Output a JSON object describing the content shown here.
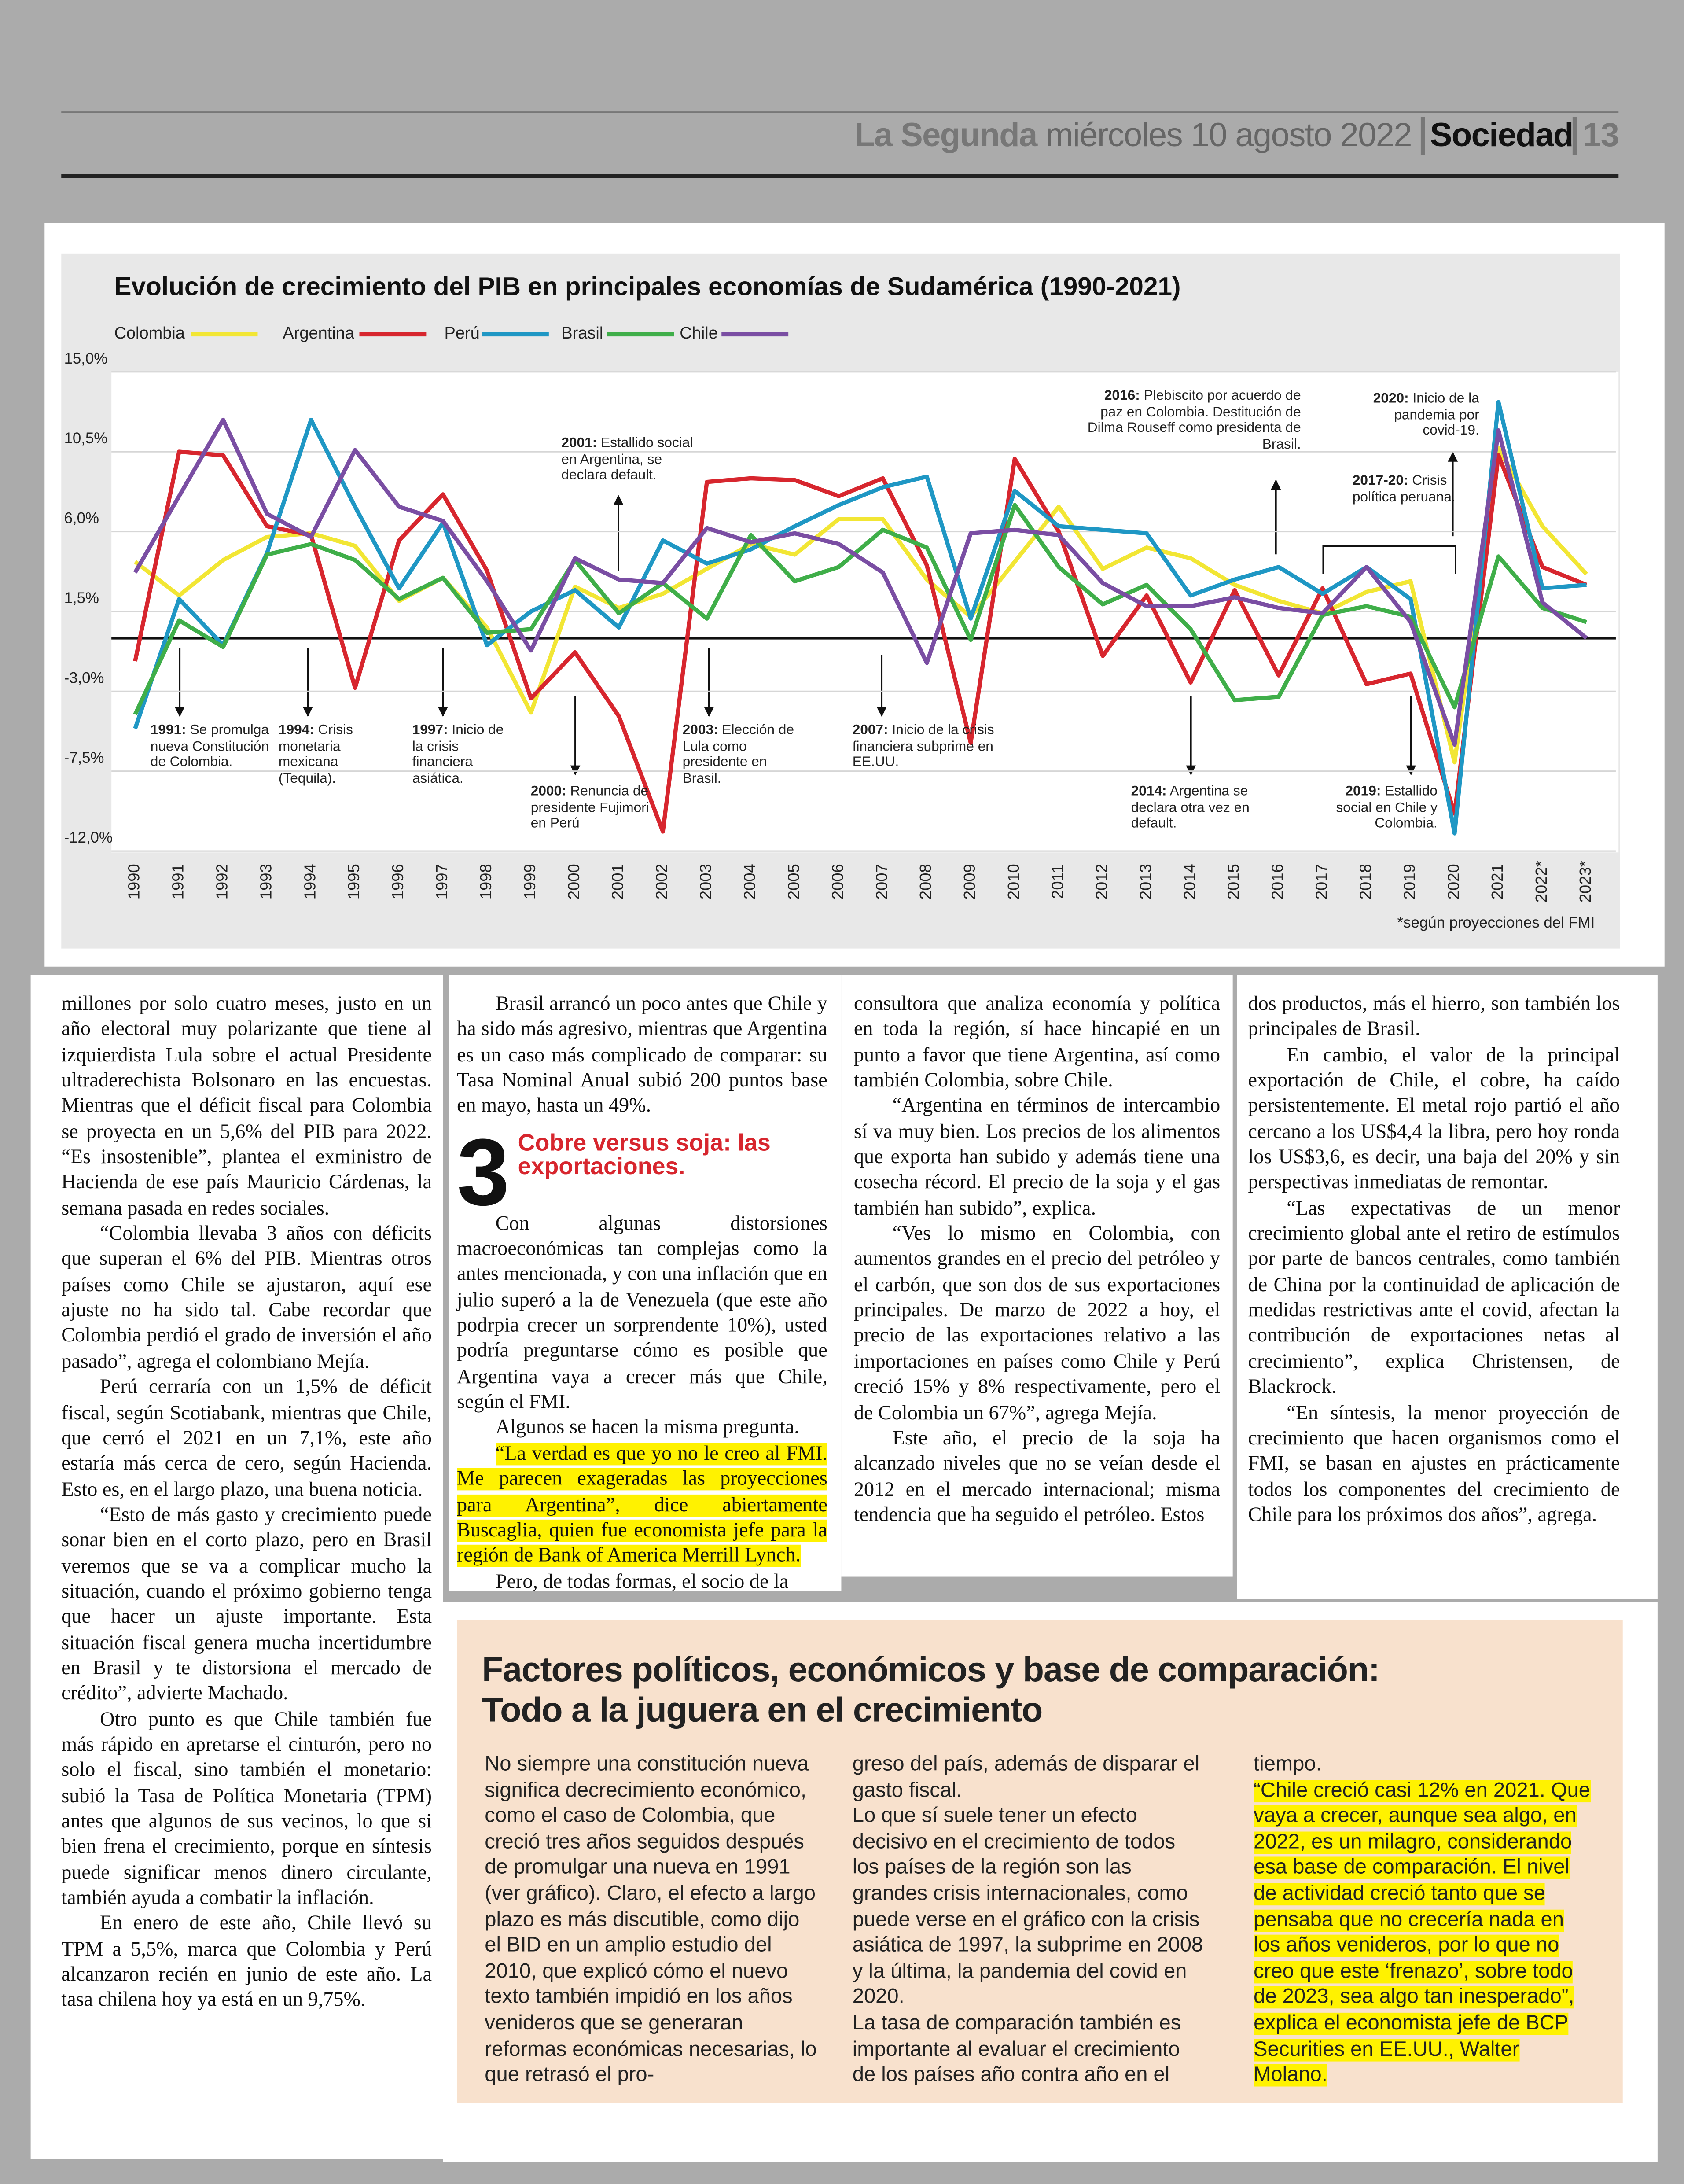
{
  "header": {
    "brand": "La Segunda",
    "date": "miércoles 10 agosto 2022",
    "section": "Sociedad",
    "page": 13
  },
  "chart_data": {
    "type": "line",
    "title": "Evolución de crecimiento del PIB en principales economías de Sudamérica (1990-2021)",
    "categories": [
      "1990",
      "1991",
      "1992",
      "1993",
      "1994",
      "1995",
      "1996",
      "1997",
      "1998",
      "1999",
      "2000",
      "2001",
      "2002",
      "2003",
      "2004",
      "2005",
      "2006",
      "2007",
      "2008",
      "2009",
      "2010",
      "2011",
      "2012",
      "2013",
      "2014",
      "2015",
      "2016",
      "2017",
      "2018",
      "2019",
      "2020",
      "2021",
      "2022*",
      "2023*"
    ],
    "series": [
      {
        "name": "Colombia",
        "color": "#f2e634",
        "values": [
          4.3,
          2.4,
          4.4,
          5.7,
          5.9,
          5.2,
          2.1,
          3.4,
          0.6,
          -4.2,
          2.9,
          1.7,
          2.5,
          3.9,
          5.3,
          4.7,
          6.7,
          6.7,
          3.3,
          1.2,
          4.3,
          7.4,
          3.9,
          5.1,
          4.5,
          3.0,
          2.1,
          1.4,
          2.6,
          3.2,
          -7.0,
          10.7,
          6.3,
          3.6
        ]
      },
      {
        "name": "Argentina",
        "color": "#d7262e",
        "values": [
          -1.3,
          10.5,
          10.3,
          6.3,
          5.8,
          -2.8,
          5.5,
          8.1,
          3.8,
          -3.4,
          -0.8,
          -4.4,
          -10.9,
          8.8,
          9.0,
          8.9,
          8.0,
          9.0,
          4.1,
          -5.9,
          10.1,
          6.0,
          -1.0,
          2.4,
          -2.5,
          2.7,
          -2.1,
          2.8,
          -2.6,
          -2.0,
          -9.9,
          10.3,
          4.0,
          3.0
        ]
      },
      {
        "name": "Perú",
        "color": "#1f97c4",
        "values": [
          -5.1,
          2.2,
          -0.4,
          4.8,
          12.3,
          7.4,
          2.8,
          6.5,
          -0.4,
          1.5,
          2.7,
          0.6,
          5.5,
          4.2,
          5.0,
          6.3,
          7.5,
          8.5,
          9.1,
          1.1,
          8.3,
          6.3,
          6.1,
          5.9,
          2.4,
          3.3,
          4.0,
          2.5,
          4.0,
          2.2,
          -11.0,
          13.3,
          2.8,
          3.0
        ]
      },
      {
        "name": "Brasil",
        "color": "#3fae49",
        "values": [
          -4.3,
          1.0,
          -0.5,
          4.7,
          5.3,
          4.4,
          2.2,
          3.4,
          0.3,
          0.5,
          4.4,
          1.4,
          3.1,
          1.1,
          5.8,
          3.2,
          4.0,
          6.1,
          5.1,
          -0.1,
          7.5,
          4.0,
          1.9,
          3.0,
          0.5,
          -3.5,
          -3.3,
          1.3,
          1.8,
          1.2,
          -3.9,
          4.6,
          1.7,
          0.9
        ]
      },
      {
        "name": "Chile",
        "color": "#7a4ea3",
        "values": [
          3.7,
          8.0,
          12.3,
          7.0,
          5.7,
          10.6,
          7.4,
          6.6,
          3.2,
          -0.7,
          4.5,
          3.3,
          3.1,
          6.2,
          5.4,
          5.9,
          5.3,
          3.7,
          -1.4,
          5.9,
          6.1,
          5.8,
          3.1,
          1.8,
          1.8,
          2.3,
          1.7,
          1.4,
          4.0,
          0.9,
          -6.0,
          11.7,
          2.0,
          0.0
        ]
      }
    ],
    "ylim": [
      -12,
      15
    ],
    "yticks": [
      {
        "value": 15,
        "label": "15,0%"
      },
      {
        "value": 10.5,
        "label": "10,5%"
      },
      {
        "value": 6,
        "label": "6,0%"
      },
      {
        "value": 1.5,
        "label": "1,5%"
      },
      {
        "value": -3,
        "label": "-3,0%"
      },
      {
        "value": -7.5,
        "label": "-7,5%"
      },
      {
        "value": -12,
        "label": "-12,0%"
      }
    ],
    "grid": true,
    "annotations": [
      {
        "label": "1991:",
        "text": "Se promulga nueva Constitución de Colombia."
      },
      {
        "label": "1994:",
        "text": "Crisis monetaria mexicana (Tequila)."
      },
      {
        "label": "1997:",
        "text": "Inicio de la crisis financiera asiática."
      },
      {
        "label": "2000:",
        "text": "Renuncia de presidente Fujimori en Perú"
      },
      {
        "label": "2001:",
        "text": "Estallido social en Argentina, se declara default."
      },
      {
        "label": "2003:",
        "text": "Elección de Lula como presidente en Brasil."
      },
      {
        "label": "2007:",
        "text": "Inicio de la crisis financiera subprime en EE.UU."
      },
      {
        "label": "2014:",
        "text": "Argentina se declara otra vez en default."
      },
      {
        "label": "2016:",
        "text": "Plebiscito por acuerdo de paz en Colombia. Destitución de Dilma Rouseff como presidenta de Brasil."
      },
      {
        "label": "2017-20:",
        "text": "Crisis política peruana."
      },
      {
        "label": "2020:",
        "text": "Inicio de la pandemia por covid-19."
      },
      {
        "label": "2019:",
        "text": "Estallido social en Chile y Colombia."
      }
    ],
    "note": "*según proyecciones del FMI"
  },
  "article": {
    "section_number": "3",
    "section_heading": "Cobre versus soja: las exportaciones.",
    "columns": [
      [
        "millones por solo cuatro meses, justo en un año electoral muy polarizante que tiene al izquierdista Lula sobre el actual Presidente ultraderechista Bolsonaro en las encuestas. Mientras que el déficit fiscal para Colombia se proyecta en un 5,6% del PIB para 2022. “Es insostenible”, plantea el exministro de Hacienda de ese país Mauricio Cárdenas, la semana pasada en redes sociales.",
        "“Colombia llevaba 3 años con déficits que superan el 6% del PIB. Mientras otros países como Chile se ajustaron, aquí ese ajuste no ha sido tal. Cabe recordar que Colombia perdió el grado de inversión el año pasado”, agrega el colombiano Mejía.",
        "Perú cerraría con un 1,5% de déficit fiscal, según Scotiabank, mientras que Chile, que cerró el 2021 en un 7,1%, este año estaría más cerca de cero, según Hacienda. Esto es, en el largo plazo, una buena noticia.",
        "“Esto de más gasto y crecimiento puede sonar bien en el corto plazo, pero en Brasil veremos que se va a complicar mucho la situación, cuando el próximo gobierno tenga que hacer un ajuste importante. Esta situación fiscal genera mucha incertidumbre en Brasil y te distorsiona el mercado de crédito”, advierte Machado.",
        "Otro punto es que Chile también fue más rápido en apretarse el cinturón, pero no solo el fiscal, sino también el monetario: subió la Tasa de Política Monetaria (TPM) antes que algunos de sus vecinos, lo que si bien frena el crecimiento, porque en síntesis puede significar menos dinero circulante, también ayuda a combatir la inflación.",
        "En enero de este año, Chile llevó su TPM a 5,5%, marca que Colombia y Perú alcanzaron recién en junio de este año. La tasa chilena hoy ya está en un 9,75%."
      ],
      [
        "Brasil arrancó un poco antes que Chile y ha sido más agresivo, mientras que Argentina es un caso más complicado de comparar: su Tasa Nominal Anual subió 200 puntos base en mayo, hasta un 49%.",
        "Con algunas distorsiones macroeconómicas tan complejas como la antes mencionada, y con una inflación que en julio superó a la de Venezuela (que este año podrpia crecer un sorprendente 10%), usted podría preguntarse cómo es posible que Argentina vaya a crecer más que Chile, según el FMI.",
        "Algunos se hacen la misma pregunta.",
        "“La verdad es que yo no le creo al FMI. Me parecen exageradas las proyecciones para Argentina”, dice abiertamente Buscaglia, quien fue economista jefe para la región de Bank of America Merrill Lynch.",
        "Pero, de todas formas, el socio de la"
      ],
      [
        "consultora que analiza economía y política en toda la región, sí hace hincapié en un punto a favor que tiene Argentina, así como también Colombia, sobre Chile.",
        "“Argentina en términos de intercambio sí va muy bien. Los precios de los alimentos que exporta han subido y además tiene una cosecha récord. El precio de la soja y el gas también han subido”, explica.",
        "“Ves lo mismo en Colombia, con aumentos grandes en el precio del petróleo y el carbón, que son dos de sus exportaciones principales. De marzo de 2022 a hoy, el precio de las exportaciones relativo a las importaciones en países como Chile y Perú creció 15% y 8% respectivamente, pero el de Colombia un 67%”, agrega Mejía.",
        "Este año, el precio de la soja ha alcanzado niveles que no se veían desde el 2012 en el mercado internacional; misma tendencia que ha seguido el petróleo. Estos"
      ],
      [
        "dos productos, más el hierro, son también los principales de Brasil.",
        "En cambio, el valor de la principal exportación de Chile, el cobre, ha caído persistentemente. El metal rojo partió el año cercano a los US$4,4 la libra, pero hoy ronda los US$3,6, es decir, una baja del 20% y sin perspectivas inmediatas de remontar.",
        "“Las expectativas de un menor crecimiento global ante el retiro de estímulos por parte de bancos centrales, como también de China por la continuidad de aplicación de medidas restrictivas ante el covid, afectan la contribución de exportaciones netas al crecimiento”, explica Christensen, de Blackrock.",
        "“En síntesis, la menor proyección de crecimiento que hacen organismos como el FMI, se basan en ajustes en prácticamente todos los componentes del crecimiento de Chile para los próximos dos años”, agrega."
      ]
    ]
  },
  "box": {
    "title_lines": [
      "Factores políticos, económicos y base de comparación:",
      "Todo a la juguera en el crecimiento"
    ],
    "columns": [
      [
        "No siempre una constitución nueva significa decrecimiento económico, como el caso de Colombia, que creció tres años seguidos después de promulgar una nueva en 1991 (ver gráfico). Claro, el efecto a largo plazo es más discutible, como dijo el BID en un amplio estudio del 2010, que explicó cómo el nuevo texto también impidió en los años venideros que se generaran reformas económicas necesarias, lo que retrasó el pro-"
      ],
      [
        "greso del país, además de disparar el gasto fiscal.",
        "Lo que sí suele tener un efecto decisivo en el crecimiento de todos los países de la región son las grandes crisis internacionales, como puede verse en el gráfico con la crisis asiática de 1997, la subprime en 2008 y la última, la pandemia del covid en 2020.",
        "La tasa de comparación también es importante al evaluar el crecimiento de los países año contra año en el"
      ],
      [
        "tiempo.",
        "“Chile creció casi 12% en 2021. Que vaya a crecer, aunque sea algo, en 2022, es un milagro, considerando esa base de comparación. El nivel de actividad creció tanto que se pensaba que no crecería nada en los años venideros, por lo que no creo que este ‘frenazo’, sobre todo de 2023, sea algo tan inesperado”, explica el economista jefe de BCP Securities en EE.UU., Walter Molano."
      ]
    ]
  }
}
